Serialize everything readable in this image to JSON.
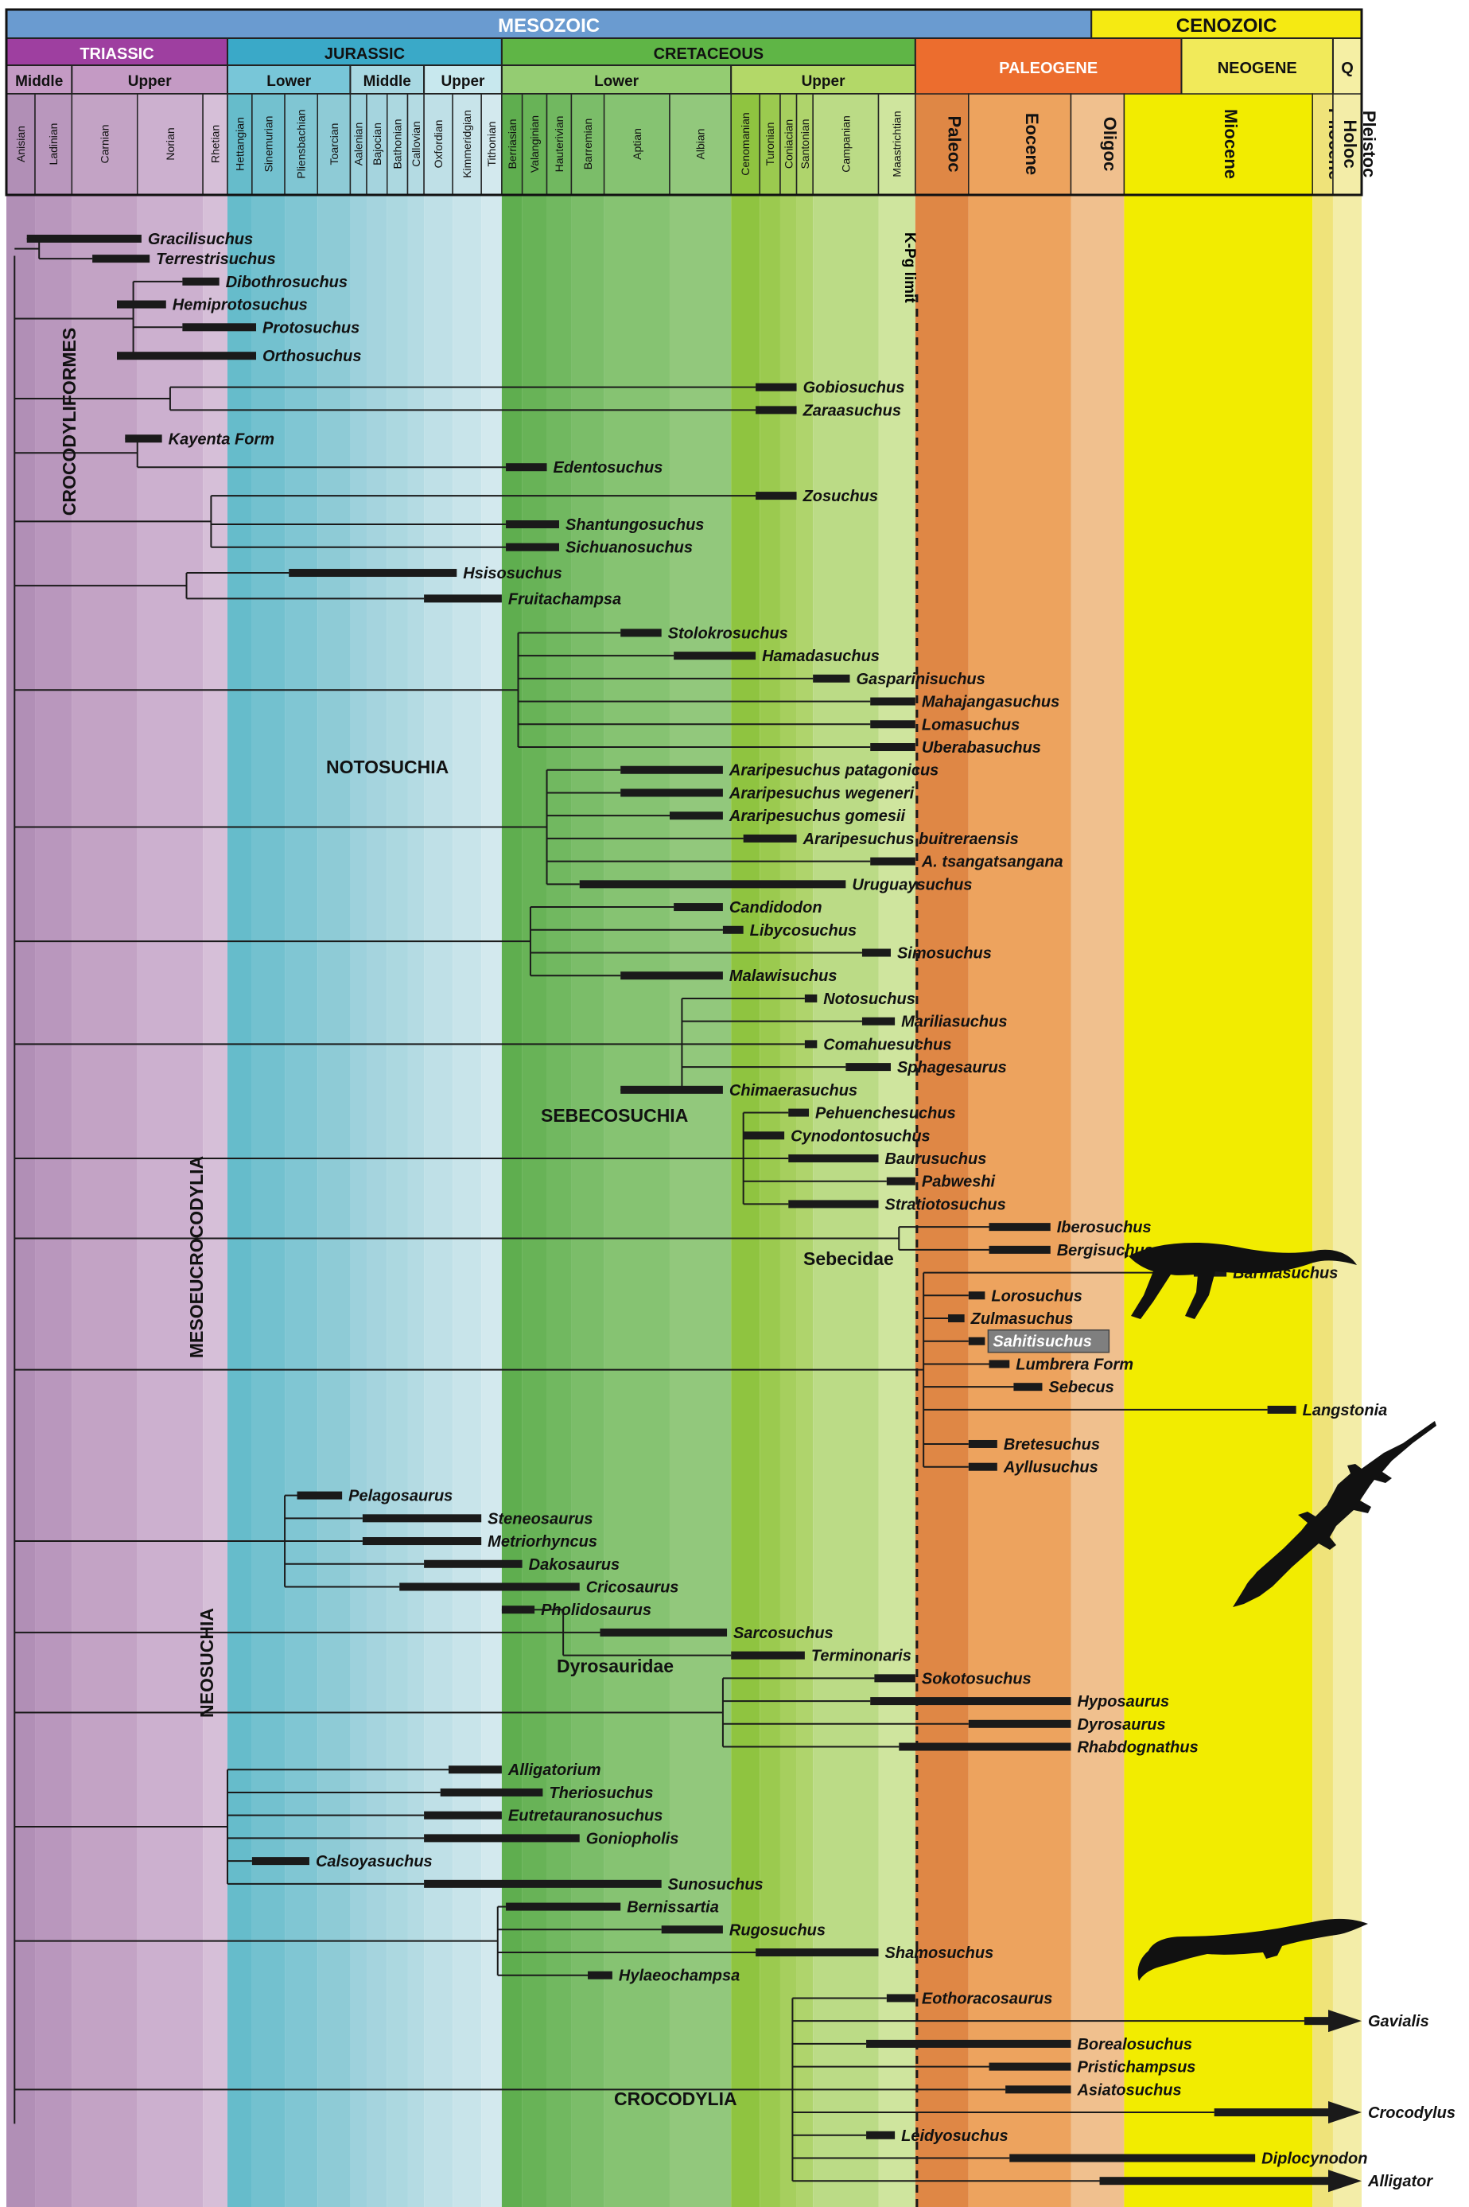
{
  "eras": [
    {
      "name": "MESOZOIC",
      "start": 0,
      "end": 26.5,
      "color": "#6a9bd0"
    },
    {
      "name": "CENOZOIC",
      "start": 26.5,
      "end": 33.1,
      "color": "#f5ea12"
    }
  ],
  "periods": [
    {
      "name": "TRIASSIC",
      "start": 0,
      "end": 5.4,
      "color": "#9e3fa0"
    },
    {
      "name": "JURASSIC",
      "start": 5.4,
      "end": 12.1,
      "color": "#3aa9c8"
    },
    {
      "name": "CRETACEOUS",
      "start": 12.1,
      "end": 22.2,
      "color": "#5fb546"
    },
    {
      "name": "PALEOGENE",
      "start": 22.2,
      "end": 28.7,
      "color": "#ec6d2e"
    },
    {
      "name": "NEOGENE",
      "start": 28.7,
      "end": 32.4,
      "color": "#f1ea5a"
    },
    {
      "name": "Q",
      "start": 32.4,
      "end": 33.1,
      "color": "#f5efa4"
    }
  ],
  "subperiods": [
    {
      "name": "Middle",
      "start": 0,
      "end": 1.6,
      "color": "#c49ac4"
    },
    {
      "name": "Upper",
      "start": 1.6,
      "end": 5.4,
      "color": "#c49ac4"
    },
    {
      "name": "Lower",
      "start": 5.4,
      "end": 8.4,
      "color": "#78c6d8"
    },
    {
      "name": "Middle",
      "start": 8.4,
      "end": 10.2,
      "color": "#a8d8e2"
    },
    {
      "name": "Upper",
      "start": 10.2,
      "end": 12.1,
      "color": "#c8e8ee"
    },
    {
      "name": "Lower",
      "start": 12.1,
      "end": 17.7,
      "color": "#94cc72"
    },
    {
      "name": "Upper",
      "start": 17.7,
      "end": 22.2,
      "color": "#b3d868"
    }
  ],
  "stages": [
    {
      "name": "Anisian",
      "start": 0.0,
      "end": 0.7,
      "color": "#b18fb6"
    },
    {
      "name": "Ladinian",
      "start": 0.7,
      "end": 1.6,
      "color": "#b997bd"
    },
    {
      "name": "Carnian",
      "start": 1.6,
      "end": 3.2,
      "color": "#c3a3c5"
    },
    {
      "name": "Norian",
      "start": 3.2,
      "end": 4.8,
      "color": "#ccb0cf"
    },
    {
      "name": "Rhetian",
      "start": 4.8,
      "end": 5.4,
      "color": "#d6bfd8"
    },
    {
      "name": "Hettangian",
      "start": 5.4,
      "end": 6.0,
      "color": "#66bccb"
    },
    {
      "name": "Sinemurian",
      "start": 6.0,
      "end": 6.8,
      "color": "#73c1cf"
    },
    {
      "name": "Pliensbachian",
      "start": 6.8,
      "end": 7.6,
      "color": "#80c6d3"
    },
    {
      "name": "Toarcian",
      "start": 7.6,
      "end": 8.4,
      "color": "#8ecbd6"
    },
    {
      "name": "Aalenian",
      "start": 8.4,
      "end": 8.8,
      "color": "#9dd1dc"
    },
    {
      "name": "Bajocian",
      "start": 8.8,
      "end": 9.3,
      "color": "#a5d4de"
    },
    {
      "name": "Bathonian",
      "start": 9.3,
      "end": 9.8,
      "color": "#acd8e0"
    },
    {
      "name": "Callovian",
      "start": 9.8,
      "end": 10.2,
      "color": "#b4dbe3"
    },
    {
      "name": "Oxfordian",
      "start": 10.2,
      "end": 10.9,
      "color": "#bfe0e7"
    },
    {
      "name": "Kimmeridgian",
      "start": 10.9,
      "end": 11.6,
      "color": "#c8e4ea"
    },
    {
      "name": "Tithonian",
      "start": 11.6,
      "end": 12.1,
      "color": "#d3e9ee"
    },
    {
      "name": "Berriasian",
      "start": 12.1,
      "end": 12.6,
      "color": "#5fae4f"
    },
    {
      "name": "Valanginian",
      "start": 12.6,
      "end": 13.2,
      "color": "#68b357"
    },
    {
      "name": "Hauterivian",
      "start": 13.2,
      "end": 13.8,
      "color": "#71b860"
    },
    {
      "name": "Barremian",
      "start": 13.8,
      "end": 14.6,
      "color": "#7bbd69"
    },
    {
      "name": "Aptian",
      "start": 14.6,
      "end": 16.2,
      "color": "#86c372"
    },
    {
      "name": "Albian",
      "start": 16.2,
      "end": 17.7,
      "color": "#92c87c"
    },
    {
      "name": "Cenomanian",
      "start": 17.7,
      "end": 18.4,
      "color": "#8fc440"
    },
    {
      "name": "Turonian",
      "start": 18.4,
      "end": 18.9,
      "color": "#9bca4f"
    },
    {
      "name": "Coniacian",
      "start": 18.9,
      "end": 19.3,
      "color": "#a6cf5e"
    },
    {
      "name": "Santonian",
      "start": 19.3,
      "end": 19.7,
      "color": "#afd46c"
    },
    {
      "name": "Campanian",
      "start": 19.7,
      "end": 21.3,
      "color": "#bbdb86"
    },
    {
      "name": "Maastrichtian",
      "start": 21.3,
      "end": 22.2,
      "color": "#cfe59e"
    }
  ],
  "epochs": [
    {
      "name": "Paleoc",
      "start": 22.2,
      "end": 23.5,
      "color": "#df8745"
    },
    {
      "name": "Eocene",
      "start": 23.5,
      "end": 26.0,
      "color": "#eda35e"
    },
    {
      "name": "Oligoc",
      "start": 26.0,
      "end": 27.3,
      "color": "#f0c08e"
    },
    {
      "name": "Miocene",
      "start": 27.3,
      "end": 31.9,
      "color": "#f2ec00"
    },
    {
      "name": "Pliocene",
      "start": 31.9,
      "end": 32.4,
      "color": "#efe37a"
    },
    {
      "name": "Holoc\nPleistoc",
      "start": 32.4,
      "end": 33.1,
      "color": "#f3eda8"
    }
  ],
  "limit_label": "K-Pg limit",
  "limit_position": 22.2,
  "taxa": [
    {
      "name": "Gracilisuchus",
      "row": 0,
      "range": [
        0.5,
        3.3
      ],
      "italic": true
    },
    {
      "name": "Terrestrisuchus",
      "row": 0.7,
      "range": [
        2.1,
        3.5
      ],
      "italic": true
    },
    {
      "name": "Dibothrosuchus",
      "row": 1.5,
      "range": [
        4.3,
        5.2
      ],
      "italic": true
    },
    {
      "name": "Hemiprotosuchus",
      "row": 2.3,
      "range": [
        2.7,
        3.9
      ],
      "italic": true
    },
    {
      "name": "Protosuchus",
      "row": 3.1,
      "range": [
        4.3,
        6.1
      ],
      "italic": true
    },
    {
      "name": "Orthosuchus",
      "row": 4.1,
      "range": [
        2.7,
        6.1
      ],
      "italic": true
    },
    {
      "name": "Gobiosuchus",
      "row": 5.2,
      "range": [
        18.3,
        19.3
      ],
      "italic": true
    },
    {
      "name": "Zaraasuchus",
      "row": 6.0,
      "range": [
        18.3,
        19.3
      ],
      "italic": true
    },
    {
      "name": "Kayenta Form",
      "row": 7.0,
      "range": [
        2.9,
        3.8
      ],
      "italic": false
    },
    {
      "name": "Edentosuchus",
      "row": 8.0,
      "range": [
        12.2,
        13.2
      ],
      "italic": true
    },
    {
      "name": "Zosuchus",
      "row": 9.0,
      "range": [
        18.3,
        19.3
      ],
      "italic": true
    },
    {
      "name": "Shantungosuchus",
      "row": 10.0,
      "range": [
        12.2,
        13.5
      ],
      "italic": true
    },
    {
      "name": "Sichuanosuchus",
      "row": 10.8,
      "range": [
        12.2,
        13.5
      ],
      "italic": true
    },
    {
      "name": "Hsisosuchus",
      "row": 11.7,
      "range": [
        6.9,
        11.0
      ],
      "italic": true
    },
    {
      "name": "Fruitachampsa",
      "row": 12.6,
      "range": [
        10.2,
        12.1
      ],
      "italic": true
    },
    {
      "name": "Stolokrosuchus",
      "row": 13.8,
      "range": [
        15.0,
        16.0
      ],
      "italic": true
    },
    {
      "name": "Hamadasuchus",
      "row": 14.6,
      "range": [
        16.3,
        18.3
      ],
      "italic": true
    },
    {
      "name": "Gasparinisuchus",
      "row": 15.4,
      "range": [
        19.7,
        20.6
      ],
      "italic": true
    },
    {
      "name": "Mahajangasuchus",
      "row": 16.2,
      "range": [
        21.1,
        22.2
      ],
      "italic": true
    },
    {
      "name": "Lomasuchus",
      "row": 17.0,
      "range": [
        21.1,
        22.2
      ],
      "italic": true
    },
    {
      "name": "Uberabasuchus",
      "row": 17.8,
      "range": [
        21.1,
        22.2
      ],
      "italic": true
    },
    {
      "name": "Araripesuchus patagonicus",
      "row": 18.6,
      "range": [
        15.0,
        17.5
      ],
      "italic": true
    },
    {
      "name": "Araripesuchus wegeneri",
      "row": 19.4,
      "range": [
        15.0,
        17.5
      ],
      "italic": true
    },
    {
      "name": "Araripesuchus gomesii",
      "row": 20.2,
      "range": [
        16.2,
        17.5
      ],
      "italic": true
    },
    {
      "name": "Araripesuchus buitreraensis",
      "row": 21.0,
      "range": [
        18.0,
        19.3
      ],
      "italic": true
    },
    {
      "name": "A. tsangatsangana",
      "row": 21.8,
      "range": [
        21.1,
        22.2
      ],
      "italic": true
    },
    {
      "name": "Uruguaysuchus",
      "row": 22.6,
      "range": [
        14.0,
        20.5
      ],
      "italic": true
    },
    {
      "name": "Candidodon",
      "row": 23.4,
      "range": [
        16.3,
        17.5
      ],
      "italic": true
    },
    {
      "name": "Libycosuchus",
      "row": 24.2,
      "range": [
        17.5,
        18.0
      ],
      "italic": true
    },
    {
      "name": "Simosuchus",
      "row": 25.0,
      "range": [
        20.9,
        21.6
      ],
      "italic": true
    },
    {
      "name": "Malawisuchus",
      "row": 25.8,
      "range": [
        15.0,
        17.5
      ],
      "italic": true
    },
    {
      "name": "Notosuchus",
      "row": 26.6,
      "range": [
        19.5,
        19.8
      ],
      "italic": true
    },
    {
      "name": "Mariliasuchus",
      "row": 27.4,
      "range": [
        20.9,
        21.7
      ],
      "italic": true
    },
    {
      "name": "Comahuesuchus",
      "row": 28.2,
      "range": [
        19.5,
        19.8
      ],
      "italic": true
    },
    {
      "name": "Sphagesaurus",
      "row": 29.0,
      "range": [
        20.5,
        21.6
      ],
      "italic": true
    },
    {
      "name": "Chimaerasuchus",
      "row": 29.8,
      "range": [
        15.0,
        17.5
      ],
      "italic": true
    },
    {
      "name": "Pehuenchesuchus",
      "row": 30.6,
      "range": [
        19.1,
        19.6
      ],
      "italic": true
    },
    {
      "name": "Cynodontosuchus",
      "row": 31.4,
      "range": [
        18.0,
        19.0
      ],
      "italic": true
    },
    {
      "name": "Baurusuchus",
      "row": 32.2,
      "range": [
        19.1,
        21.3
      ],
      "italic": true
    },
    {
      "name": "Pabweshi",
      "row": 33.0,
      "range": [
        21.5,
        22.2
      ],
      "italic": true
    },
    {
      "name": "Stratiotosuchus",
      "row": 33.8,
      "range": [
        19.1,
        21.3
      ],
      "italic": true
    },
    {
      "name": "Iberosuchus",
      "row": 34.6,
      "range": [
        24.0,
        25.5
      ],
      "italic": true
    },
    {
      "name": "Bergisuchus",
      "row": 35.4,
      "range": [
        24.0,
        25.5
      ],
      "italic": true
    },
    {
      "name": "Barinasuchus",
      "row": 36.2,
      "range": [
        29.0,
        29.8
      ],
      "italic": true
    },
    {
      "name": "Lorosuchus",
      "row": 37.0,
      "range": [
        23.5,
        23.9
      ],
      "italic": true
    },
    {
      "name": "Zulmasuchus",
      "row": 37.8,
      "range": [
        23.0,
        23.4
      ],
      "italic": true
    },
    {
      "name": "Sahitisuchus",
      "row": 38.6,
      "range": [
        23.5,
        23.9
      ],
      "italic": true
    },
    {
      "name": "Lumbrera Form",
      "row": 39.4,
      "range": [
        24.0,
        24.5
      ],
      "italic": false
    },
    {
      "name": "Sebecus",
      "row": 40.2,
      "range": [
        24.6,
        25.3
      ],
      "italic": true
    },
    {
      "name": "Langstonia",
      "row": 41.0,
      "range": [
        30.8,
        31.5
      ],
      "italic": true
    },
    {
      "name": "Bretesuchus",
      "row": 42.2,
      "range": [
        23.5,
        24.2
      ],
      "italic": true
    },
    {
      "name": "Ayllusuchus",
      "row": 43.0,
      "range": [
        23.5,
        24.2
      ],
      "italic": true
    },
    {
      "name": "Pelagosaurus",
      "row": 44.0,
      "range": [
        7.1,
        8.2
      ],
      "italic": true
    },
    {
      "name": "Steneosaurus",
      "row": 44.8,
      "range": [
        8.7,
        11.6
      ],
      "italic": true
    },
    {
      "name": "Metriorhyncus",
      "row": 45.6,
      "range": [
        8.7,
        11.6
      ],
      "italic": true
    },
    {
      "name": "Dakosaurus",
      "row": 46.4,
      "range": [
        10.2,
        12.6
      ],
      "italic": true
    },
    {
      "name": "Cricosaurus",
      "row": 47.2,
      "range": [
        9.6,
        14.0
      ],
      "italic": true
    },
    {
      "name": "Pholidosaurus",
      "row": 48.0,
      "range": [
        12.1,
        12.9
      ],
      "italic": true
    },
    {
      "name": "Sarcosuchus",
      "row": 48.8,
      "range": [
        14.5,
        17.6
      ],
      "italic": true
    },
    {
      "name": "Terminonaris",
      "row": 49.6,
      "range": [
        17.7,
        19.5
      ],
      "italic": true
    },
    {
      "name": "Sokotosuchus",
      "row": 50.4,
      "range": [
        21.2,
        22.2
      ],
      "italic": true
    },
    {
      "name": "Hyposaurus",
      "row": 51.2,
      "range": [
        21.1,
        26.0
      ],
      "italic": true
    },
    {
      "name": "Dyrosaurus",
      "row": 52.0,
      "range": [
        23.5,
        26.0
      ],
      "italic": true
    },
    {
      "name": "Rhabdognathus",
      "row": 52.8,
      "range": [
        21.8,
        26.0
      ],
      "italic": true
    },
    {
      "name": "Alligatorium",
      "row": 53.6,
      "range": [
        10.8,
        12.1
      ],
      "italic": true
    },
    {
      "name": "Theriosuchus",
      "row": 54.4,
      "range": [
        10.6,
        13.1
      ],
      "italic": true
    },
    {
      "name": "Eutretauranosuchus",
      "row": 55.2,
      "range": [
        10.2,
        12.1
      ],
      "italic": true
    },
    {
      "name": "Goniopholis",
      "row": 56.0,
      "range": [
        10.2,
        14.0
      ],
      "italic": true
    },
    {
      "name": "Calsoyasuchus",
      "row": 56.8,
      "range": [
        6.0,
        7.4
      ],
      "italic": true
    },
    {
      "name": "Sunosuchus",
      "row": 57.6,
      "range": [
        10.2,
        16.0
      ],
      "italic": true
    },
    {
      "name": "Bernissartia",
      "row": 58.4,
      "range": [
        12.2,
        15.0
      ],
      "italic": true
    },
    {
      "name": "Rugosuchus",
      "row": 59.2,
      "range": [
        16.0,
        17.5
      ],
      "italic": true
    },
    {
      "name": "Shamosuchus",
      "row": 60.0,
      "range": [
        18.3,
        21.3
      ],
      "italic": true
    },
    {
      "name": "Hylaeochampsa",
      "row": 60.8,
      "range": [
        14.2,
        14.8
      ],
      "italic": true
    },
    {
      "name": "Eothoracosaurus",
      "row": 61.6,
      "range": [
        21.5,
        22.2
      ],
      "italic": true
    },
    {
      "name": "Gavialis",
      "row": 62.4,
      "range": [
        31.7,
        33.1
      ],
      "italic": true,
      "arrow": true
    },
    {
      "name": "Borealosuchus",
      "row": 63.2,
      "range": [
        21.0,
        26.0
      ],
      "italic": true
    },
    {
      "name": "Pristichampsus",
      "row": 64.0,
      "range": [
        24.0,
        26.0
      ],
      "italic": true
    },
    {
      "name": "Asiatosuchus",
      "row": 64.8,
      "range": [
        24.4,
        26.0
      ],
      "italic": true
    },
    {
      "name": "Crocodylus",
      "row": 65.6,
      "range": [
        29.5,
        33.1
      ],
      "italic": true,
      "arrow": true
    },
    {
      "name": "Leidyosuchus",
      "row": 66.4,
      "range": [
        21.0,
        21.7
      ],
      "italic": true
    },
    {
      "name": "Diplocynodon",
      "row": 67.2,
      "range": [
        24.5,
        30.5
      ],
      "italic": true
    },
    {
      "name": "Alligator",
      "row": 68.0,
      "range": [
        26.7,
        33.1
      ],
      "italic": true,
      "arrow": true
    }
  ],
  "clades": [
    {
      "name": "CROCODYLIFORMES",
      "orientation": "vertical"
    },
    {
      "name": "NOTOSUCHIA",
      "orientation": "horizontal"
    },
    {
      "name": "SEBECOSUCHIA",
      "orientation": "horizontal"
    },
    {
      "name": "Sebecidae",
      "orientation": "horizontal"
    },
    {
      "name": "MESOEUCROCODYLIA",
      "orientation": "vertical"
    },
    {
      "name": "NEOSUCHIA",
      "orientation": "vertical"
    },
    {
      "name": "Dyrosauridae",
      "orientation": "horizontal"
    },
    {
      "name": "CROCODYLIA",
      "orientation": "horizontal"
    }
  ],
  "highlight_taxon": "Sahitisuchus",
  "colors": {
    "bar": "#1a1a1a",
    "branch": "#1a1a1a",
    "highlight_box": "#7f7f7f",
    "highlight_text": "#ffffff",
    "silhouette": "#111111"
  }
}
